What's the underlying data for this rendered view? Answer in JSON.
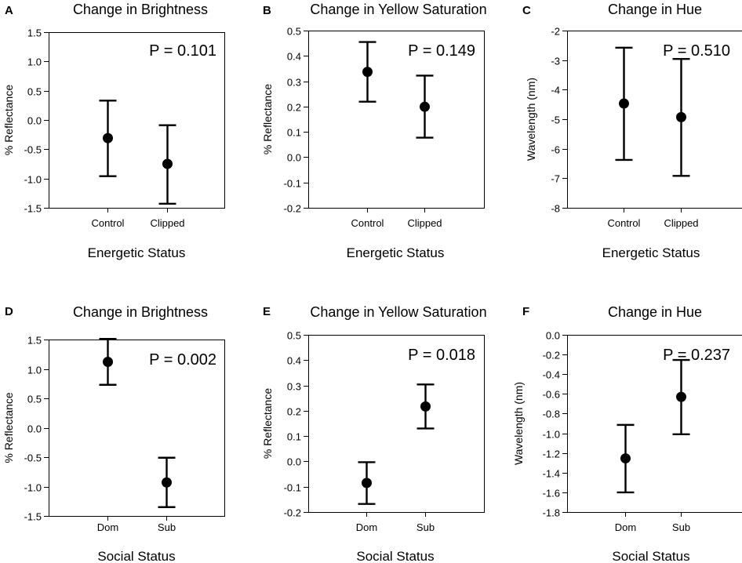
{
  "chart_data": [
    {
      "panel": "A",
      "type": "scatter",
      "title": "Change in Brightness",
      "xlabel": "Energetic Status",
      "ylabel": "% Reflectance",
      "ylim": [
        -1.5,
        1.5
      ],
      "yticks": [
        -1.5,
        -1.0,
        -0.5,
        0.0,
        0.5,
        1.0,
        1.5
      ],
      "ytick_labels": [
        "-1.5",
        "-1.0",
        "-0.5",
        "0.0",
        "0.5",
        "1.0",
        "1.5"
      ],
      "categories": [
        "Control",
        "Clipped"
      ],
      "points": [
        {
          "category": "Control",
          "y": -0.31,
          "low": -0.96,
          "high": 0.33
        },
        {
          "category": "Clipped",
          "y": -0.75,
          "low": -1.43,
          "high": -0.09
        }
      ],
      "p_label": "P = 0.101"
    },
    {
      "panel": "B",
      "type": "scatter",
      "title": "Change in Yellow Saturation",
      "xlabel": "Energetic Status",
      "ylabel": "% Reflectance",
      "ylim": [
        -0.2,
        0.5
      ],
      "yticks": [
        -0.2,
        -0.1,
        0.0,
        0.1,
        0.2,
        0.3,
        0.4,
        0.5
      ],
      "ytick_labels": [
        "-0.2",
        "-0.1",
        "0.0",
        "0.1",
        "0.2",
        "0.3",
        "0.4",
        "0.5"
      ],
      "categories": [
        "Control",
        "Clipped"
      ],
      "points": [
        {
          "category": "Control",
          "y": 0.337,
          "low": 0.219,
          "high": 0.455
        },
        {
          "category": "Clipped",
          "y": 0.199,
          "low": 0.077,
          "high": 0.322
        }
      ],
      "p_label": "P = 0.149"
    },
    {
      "panel": "C",
      "type": "scatter",
      "title": "Change in Hue",
      "xlabel": "Energetic Status",
      "ylabel": "Wavelength (nm)",
      "ylim": [
        -8,
        -2
      ],
      "yticks": [
        -8,
        -7,
        -6,
        -5,
        -4,
        -3,
        -2
      ],
      "ytick_labels": [
        "-8",
        "-7",
        "-6",
        "-5",
        "-4",
        "-3",
        "-2"
      ],
      "categories": [
        "Control",
        "Clipped"
      ],
      "points": [
        {
          "category": "Control",
          "y": -4.47,
          "low": -6.38,
          "high": -2.58
        },
        {
          "category": "Clipped",
          "y": -4.93,
          "low": -6.92,
          "high": -2.96
        }
      ],
      "p_label": "P = 0.510"
    },
    {
      "panel": "D",
      "type": "scatter",
      "title": "Change in Brightness",
      "xlabel": "Social Status",
      "ylabel": "% Reflectance",
      "ylim": [
        -1.5,
        1.5
      ],
      "yticks": [
        -1.5,
        -1.0,
        -0.5,
        0.0,
        0.5,
        1.0,
        1.5
      ],
      "ytick_labels": [
        "-1.5",
        "-1.0",
        "-0.5",
        "0.0",
        "0.5",
        "1.0",
        "1.5"
      ],
      "categories": [
        "Dom",
        "Sub"
      ],
      "points": [
        {
          "category": "Dom",
          "y": 1.12,
          "low": 0.73,
          "high": 1.51
        },
        {
          "category": "Sub",
          "y": -0.93,
          "low": -1.35,
          "high": -0.51
        }
      ],
      "p_label": "P = 0.002"
    },
    {
      "panel": "E",
      "type": "scatter",
      "title": "Change in Yellow Saturation",
      "xlabel": "Social Status",
      "ylabel": "% Reflectance",
      "ylim": [
        -0.2,
        0.5
      ],
      "yticks": [
        -0.2,
        -0.1,
        0.0,
        0.1,
        0.2,
        0.3,
        0.4,
        0.5
      ],
      "ytick_labels": [
        "-0.2",
        "-0.1",
        "0.0",
        "0.1",
        "0.2",
        "0.3",
        "0.4",
        "0.5"
      ],
      "categories": [
        "Dom",
        "Sub"
      ],
      "points": [
        {
          "category": "Dom",
          "y": -0.085,
          "low": -0.168,
          "high": -0.003
        },
        {
          "category": "Sub",
          "y": 0.217,
          "low": 0.13,
          "high": 0.304
        }
      ],
      "p_label": "P = 0.018"
    },
    {
      "panel": "F",
      "type": "scatter",
      "title": "Change in Hue",
      "xlabel": "Social Status",
      "ylabel": "Wavelength (nm)",
      "ylim": [
        -1.8,
        0.0
      ],
      "yticks": [
        -1.8,
        -1.6,
        -1.4,
        -1.2,
        -1.0,
        -0.8,
        -0.6,
        -0.4,
        -0.2,
        0.0
      ],
      "ytick_labels": [
        "-1.8",
        "-1.6",
        "-1.4",
        "-1.2",
        "-1.0",
        "-0.8",
        "-0.6",
        "-0.4",
        "-0.2",
        "0.0"
      ],
      "categories": [
        "Dom",
        "Sub"
      ],
      "points": [
        {
          "category": "Dom",
          "y": -1.255,
          "low": -1.6,
          "high": -0.915
        },
        {
          "category": "Sub",
          "y": -0.63,
          "low": -1.01,
          "high": -0.255
        }
      ],
      "p_label": "P = 0.237"
    }
  ]
}
